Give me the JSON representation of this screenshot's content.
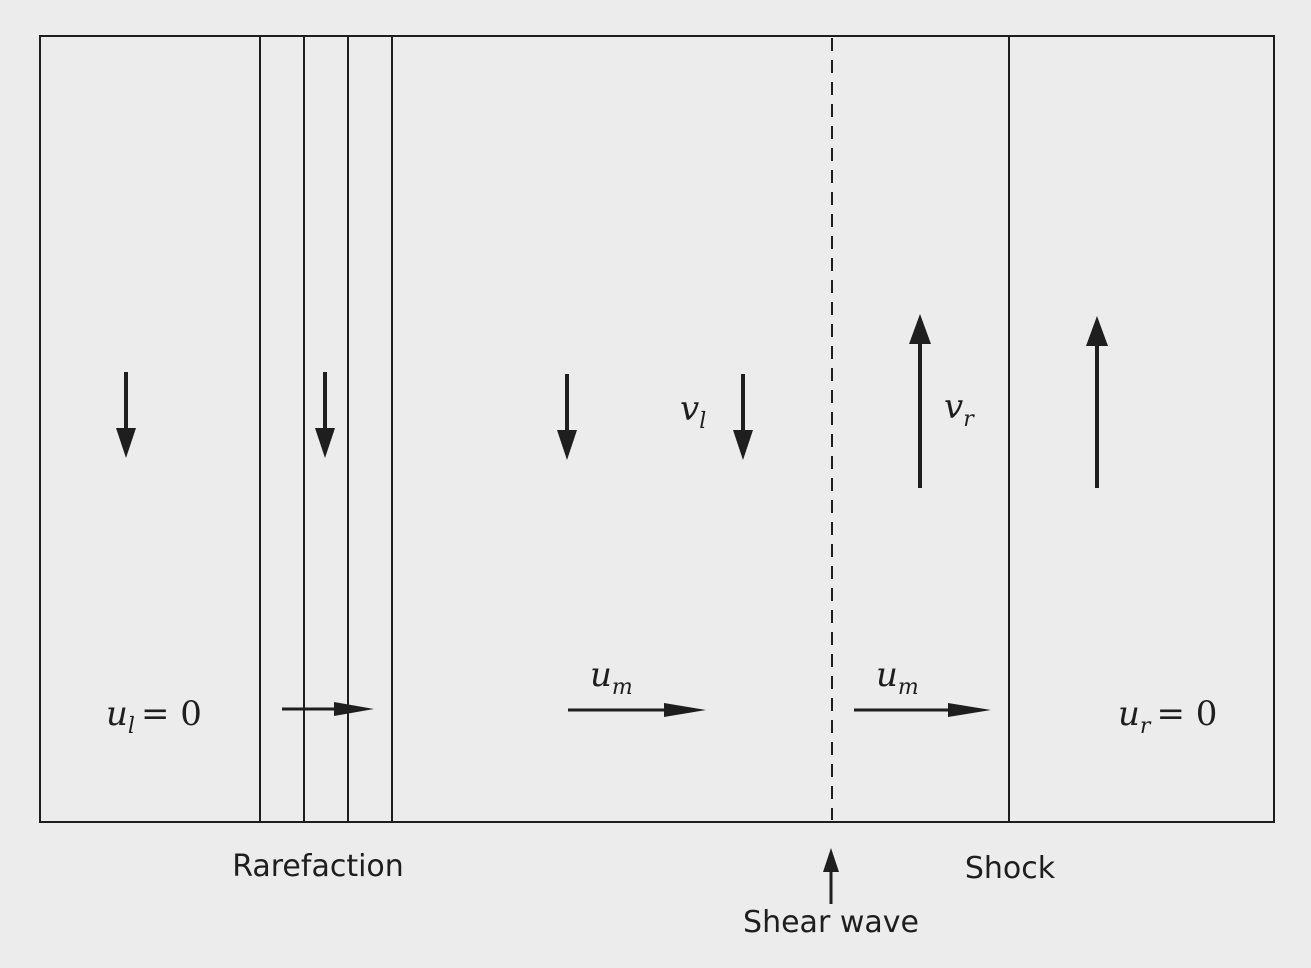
{
  "diagram": {
    "labels": {
      "rarefaction": "Rarefaction",
      "shock": "Shock",
      "shear_wave": "Shear wave"
    },
    "math": {
      "u_l_base": "u",
      "u_l_sub": "l",
      "u_l_value": "= 0",
      "u_r_base": "u",
      "u_r_sub": "r",
      "u_r_value": "= 0",
      "v_l_base": "v",
      "v_l_sub": "l",
      "v_r_base": "v",
      "v_r_sub": "r",
      "u_m1_base": "u",
      "u_m1_sub": "m",
      "u_m2_base": "u",
      "u_m2_sub": "m"
    },
    "colors": {
      "background": "#ececec",
      "ink": "#1e1e1e"
    }
  }
}
